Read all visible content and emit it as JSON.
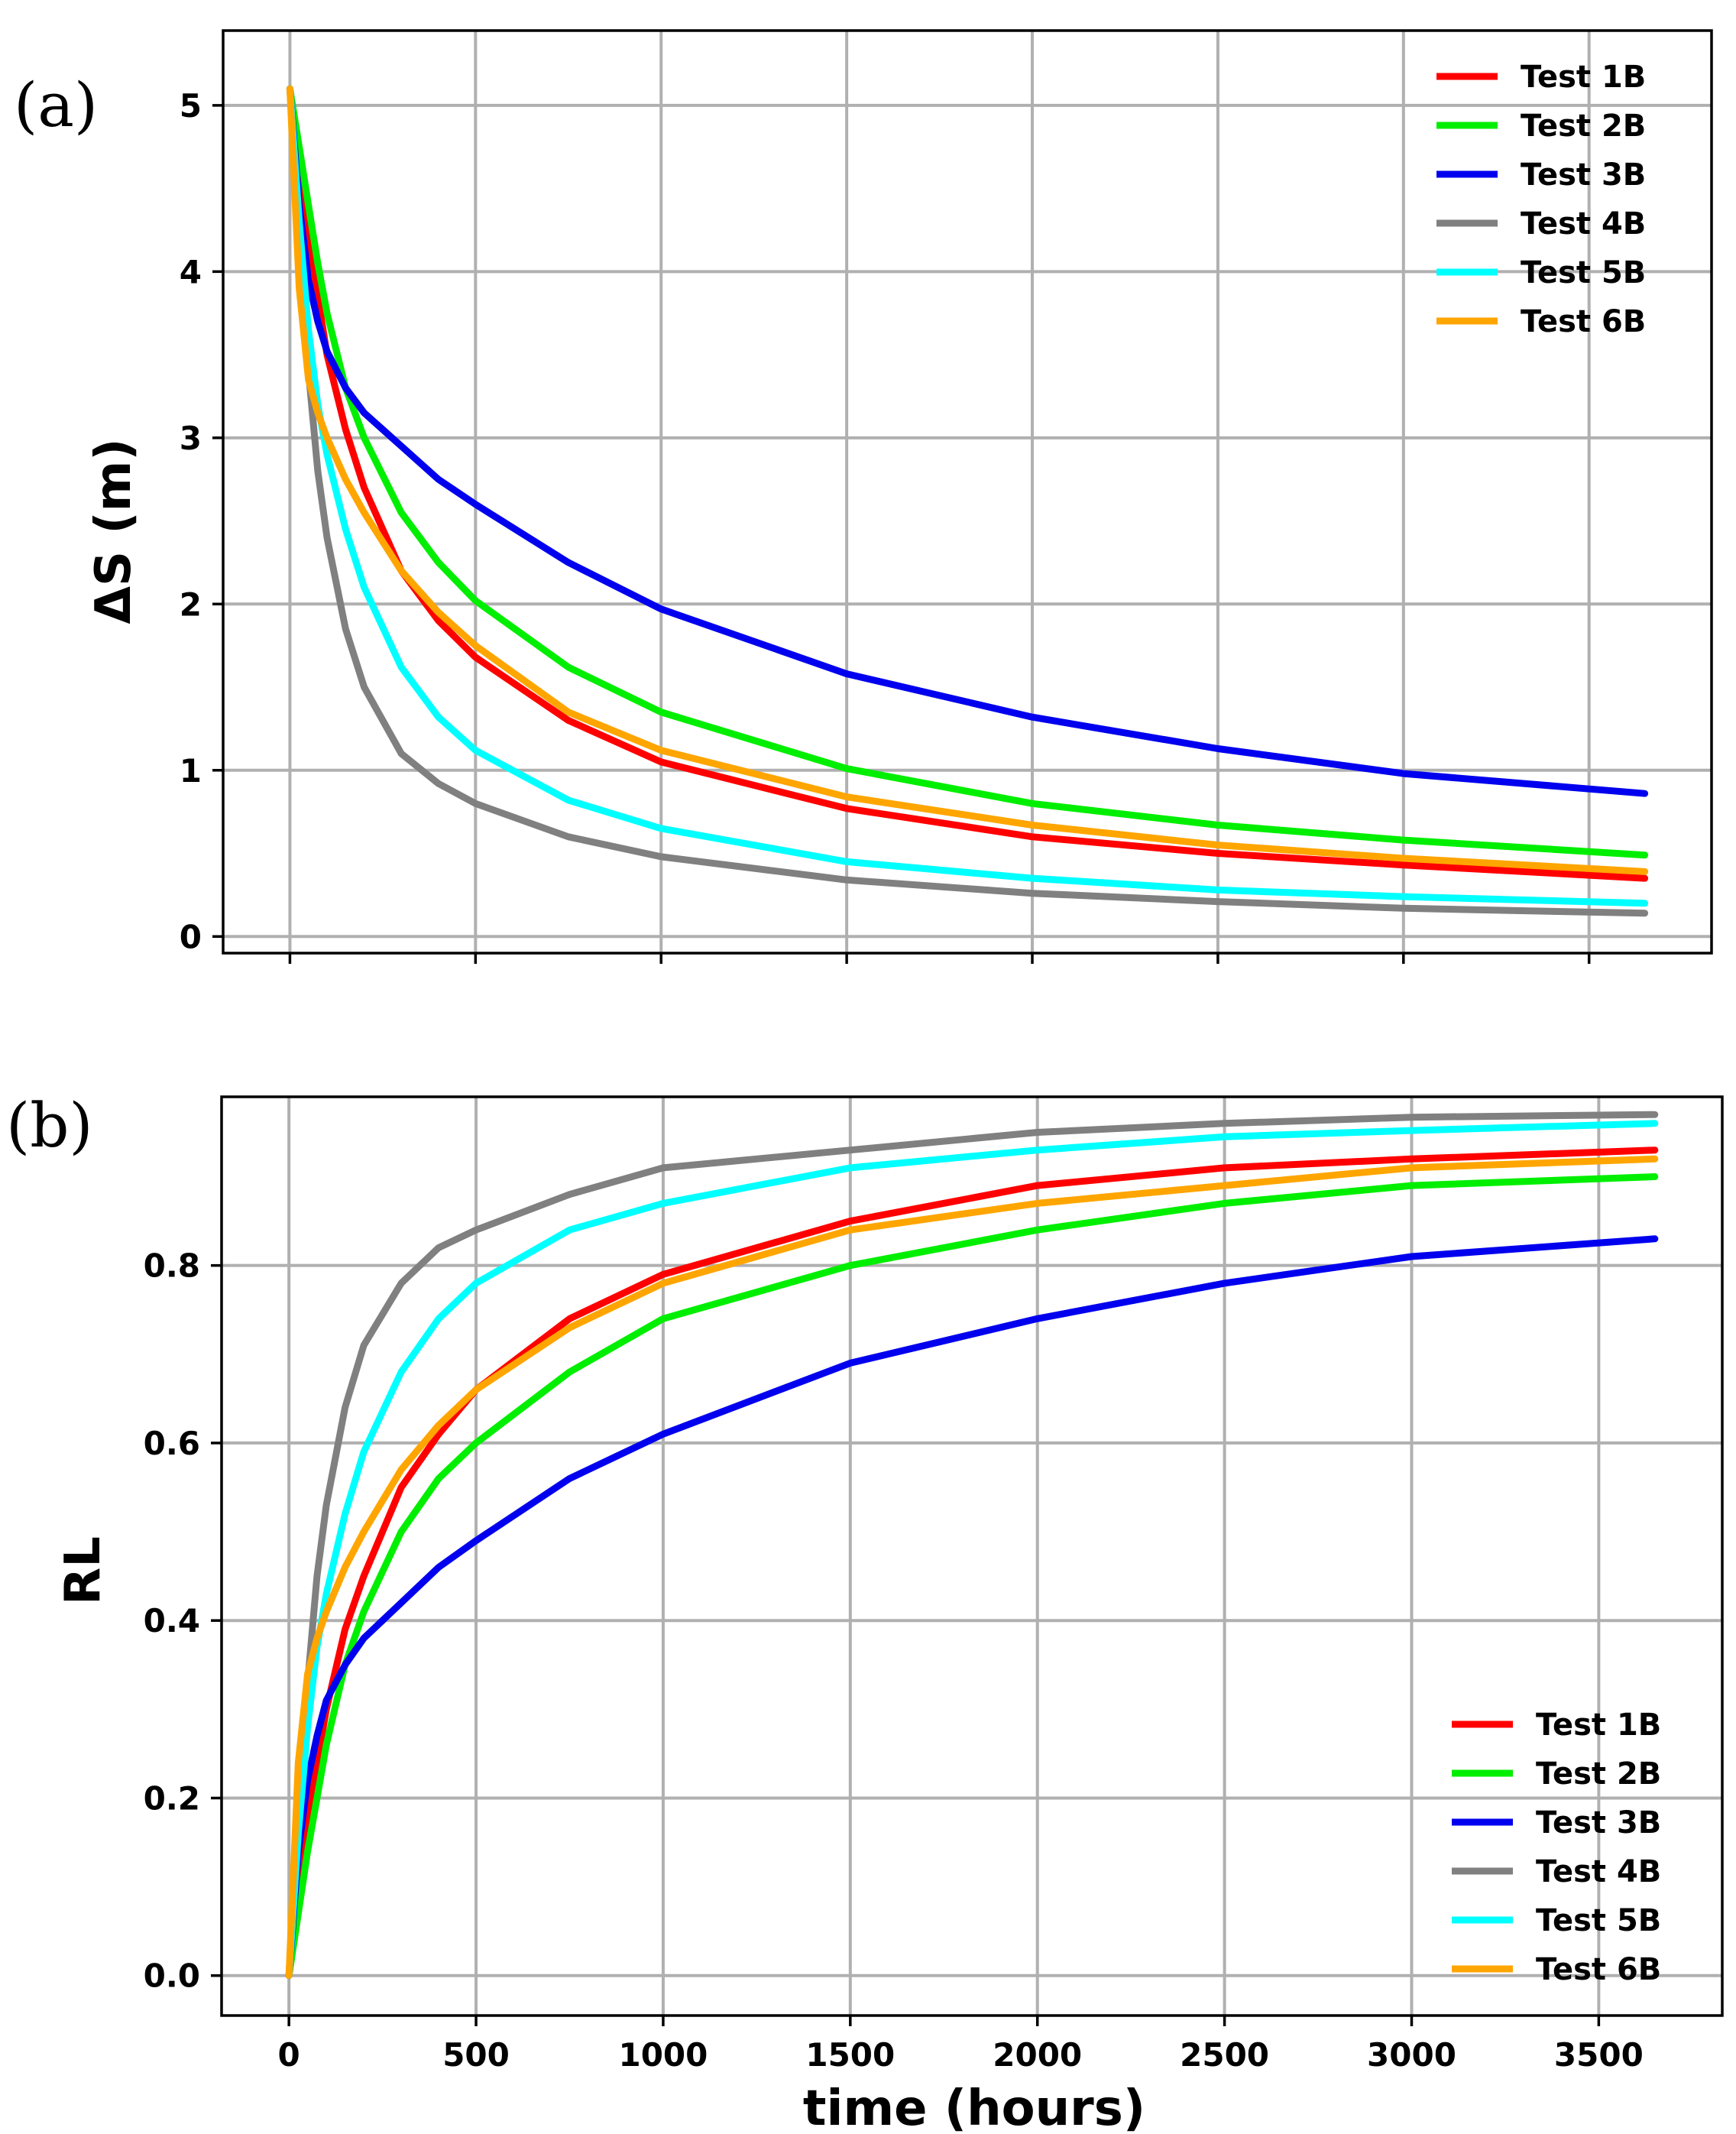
{
  "chart_data": [
    {
      "panel": "(a)",
      "type": "line",
      "title": "",
      "xlabel": "",
      "ylabel": "ΔS (m)",
      "xlim": [
        -180,
        3830
      ],
      "ylim": [
        -0.1,
        5.45
      ],
      "xticks": [
        0,
        500,
        1000,
        1500,
        2000,
        2500,
        3000,
        3500
      ],
      "yticks": [
        0,
        1,
        2,
        3,
        4,
        5
      ],
      "ytick_labels": [
        "0",
        "1",
        "2",
        "3",
        "4",
        "5"
      ],
      "show_x_tick_labels": false,
      "grid": true,
      "legend_position": "top-right",
      "series": [
        {
          "name": "Test 1B",
          "color": "#ff0000",
          "x": [
            0,
            25,
            50,
            75,
            100,
            150,
            200,
            300,
            400,
            500,
            750,
            1000,
            1500,
            2000,
            2500,
            3000,
            3650
          ],
          "y": [
            5.1,
            4.7,
            4.25,
            3.85,
            3.5,
            3.05,
            2.7,
            2.2,
            1.9,
            1.68,
            1.3,
            1.05,
            0.77,
            0.6,
            0.5,
            0.43,
            0.35
          ]
        },
        {
          "name": "Test 2B",
          "color": "#00ee00",
          "x": [
            0,
            25,
            50,
            75,
            100,
            150,
            200,
            300,
            400,
            500,
            750,
            1000,
            1500,
            2000,
            2500,
            3000,
            3650
          ],
          "y": [
            5.1,
            4.75,
            4.4,
            4.05,
            3.75,
            3.3,
            3.0,
            2.55,
            2.25,
            2.02,
            1.62,
            1.35,
            1.01,
            0.8,
            0.67,
            0.58,
            0.49
          ]
        },
        {
          "name": "Test 3B",
          "color": "#0000ee",
          "x": [
            0,
            25,
            50,
            75,
            100,
            150,
            200,
            300,
            400,
            500,
            750,
            1000,
            1500,
            2000,
            2500,
            3000,
            3650
          ],
          "y": [
            5.1,
            4.4,
            3.95,
            3.7,
            3.52,
            3.3,
            3.15,
            2.95,
            2.75,
            2.6,
            2.25,
            1.97,
            1.58,
            1.32,
            1.13,
            0.98,
            0.86
          ]
        },
        {
          "name": "Test 4B",
          "color": "#808080",
          "x": [
            0,
            25,
            50,
            75,
            100,
            150,
            200,
            300,
            400,
            500,
            750,
            1000,
            1500,
            2000,
            2500,
            3000,
            3650
          ],
          "y": [
            5.1,
            4.2,
            3.4,
            2.8,
            2.4,
            1.85,
            1.5,
            1.1,
            0.92,
            0.8,
            0.6,
            0.48,
            0.34,
            0.26,
            0.21,
            0.17,
            0.14
          ]
        },
        {
          "name": "Test 5B",
          "color": "#00ffff",
          "x": [
            0,
            25,
            50,
            75,
            100,
            150,
            200,
            300,
            400,
            500,
            750,
            1000,
            1500,
            2000,
            2500,
            3000,
            3650
          ],
          "y": [
            5.1,
            4.3,
            3.65,
            3.2,
            2.9,
            2.45,
            2.1,
            1.62,
            1.32,
            1.12,
            0.82,
            0.65,
            0.45,
            0.35,
            0.28,
            0.24,
            0.2
          ]
        },
        {
          "name": "Test 6B",
          "color": "#ffa500",
          "x": [
            0,
            25,
            50,
            75,
            100,
            150,
            200,
            300,
            400,
            500,
            750,
            1000,
            1500,
            2000,
            2500,
            3000,
            3650
          ],
          "y": [
            5.1,
            3.9,
            3.35,
            3.15,
            3.0,
            2.75,
            2.55,
            2.2,
            1.95,
            1.75,
            1.35,
            1.12,
            0.84,
            0.67,
            0.55,
            0.47,
            0.39
          ]
        }
      ]
    },
    {
      "panel": "(b)",
      "type": "line",
      "title": "",
      "xlabel": "time (hours)",
      "ylabel": "RL",
      "xlim": [
        -180,
        3830
      ],
      "ylim": [
        -0.045,
        0.99
      ],
      "xticks": [
        0,
        500,
        1000,
        1500,
        2000,
        2500,
        3000,
        3500
      ],
      "xtick_labels": [
        "0",
        "500",
        "1000",
        "1500",
        "2000",
        "2500",
        "3000",
        "3500"
      ],
      "yticks": [
        0.0,
        0.2,
        0.4,
        0.6,
        0.8
      ],
      "ytick_labels": [
        "0.0",
        "0.2",
        "0.4",
        "0.6",
        "0.8"
      ],
      "show_x_tick_labels": true,
      "grid": true,
      "legend_position": "bottom-right",
      "series": [
        {
          "name": "Test 1B",
          "color": "#ff0000",
          "x": [
            0,
            25,
            50,
            75,
            100,
            150,
            200,
            300,
            400,
            500,
            750,
            1000,
            1500,
            2000,
            2500,
            3000,
            3650
          ],
          "y": [
            0.0,
            0.08,
            0.17,
            0.24,
            0.3,
            0.39,
            0.45,
            0.55,
            0.61,
            0.66,
            0.74,
            0.79,
            0.85,
            0.89,
            0.91,
            0.92,
            0.93
          ]
        },
        {
          "name": "Test 2B",
          "color": "#00ee00",
          "x": [
            0,
            25,
            50,
            75,
            100,
            150,
            200,
            300,
            400,
            500,
            750,
            1000,
            1500,
            2000,
            2500,
            3000,
            3650
          ],
          "y": [
            0.0,
            0.07,
            0.14,
            0.2,
            0.26,
            0.35,
            0.41,
            0.5,
            0.56,
            0.6,
            0.68,
            0.74,
            0.8,
            0.84,
            0.87,
            0.89,
            0.9
          ]
        },
        {
          "name": "Test 3B",
          "color": "#0000ee",
          "x": [
            0,
            25,
            50,
            75,
            100,
            150,
            200,
            300,
            400,
            500,
            750,
            1000,
            1500,
            2000,
            2500,
            3000,
            3650
          ],
          "y": [
            0.0,
            0.14,
            0.22,
            0.27,
            0.31,
            0.35,
            0.38,
            0.42,
            0.46,
            0.49,
            0.56,
            0.61,
            0.69,
            0.74,
            0.78,
            0.81,
            0.83
          ]
        },
        {
          "name": "Test 4B",
          "color": "#808080",
          "x": [
            0,
            25,
            50,
            75,
            100,
            150,
            200,
            300,
            400,
            500,
            750,
            1000,
            1500,
            2000,
            2500,
            3000,
            3650
          ],
          "y": [
            0.0,
            0.18,
            0.33,
            0.45,
            0.53,
            0.64,
            0.71,
            0.78,
            0.82,
            0.84,
            0.88,
            0.91,
            0.93,
            0.95,
            0.96,
            0.967,
            0.97
          ]
        },
        {
          "name": "Test 5B",
          "color": "#00ffff",
          "x": [
            0,
            25,
            50,
            75,
            100,
            150,
            200,
            300,
            400,
            500,
            750,
            1000,
            1500,
            2000,
            2500,
            3000,
            3650
          ],
          "y": [
            0.0,
            0.16,
            0.28,
            0.37,
            0.43,
            0.52,
            0.59,
            0.68,
            0.74,
            0.78,
            0.84,
            0.87,
            0.91,
            0.93,
            0.945,
            0.952,
            0.96
          ]
        },
        {
          "name": "Test 6B",
          "color": "#ffa500",
          "x": [
            0,
            25,
            50,
            75,
            100,
            150,
            200,
            300,
            400,
            500,
            750,
            1000,
            1500,
            2000,
            2500,
            3000,
            3650
          ],
          "y": [
            0.0,
            0.24,
            0.34,
            0.38,
            0.41,
            0.46,
            0.5,
            0.57,
            0.62,
            0.66,
            0.73,
            0.78,
            0.84,
            0.87,
            0.89,
            0.91,
            0.92
          ]
        }
      ]
    }
  ]
}
